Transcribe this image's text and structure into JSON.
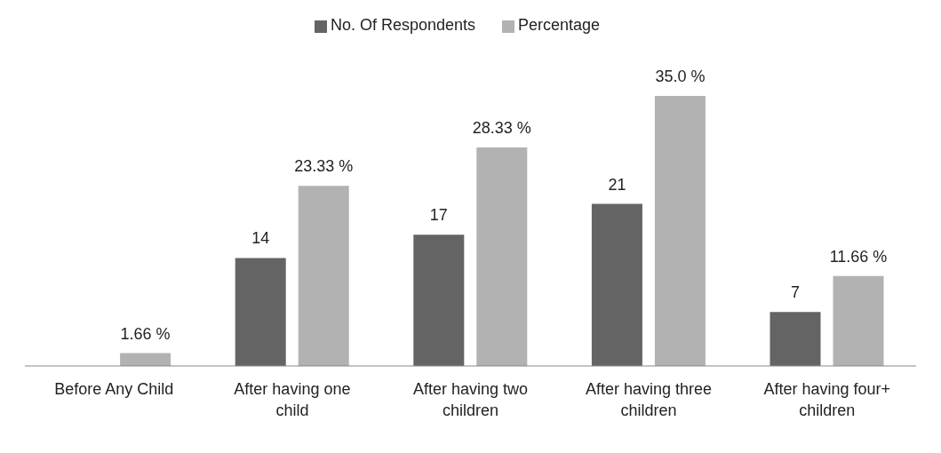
{
  "chart_data": {
    "type": "bar",
    "categories": [
      "Before Any Child",
      "After having one child",
      "After having two children",
      "After having three children",
      "After having four+ children"
    ],
    "series": [
      {
        "name": "No. Of Respondents",
        "color": "#646464",
        "values": [
          null,
          14,
          17,
          21,
          7
        ],
        "value_labels": [
          null,
          "14",
          "17",
          "21",
          "7"
        ]
      },
      {
        "name": "Percentage",
        "color": "#b2b2b2",
        "values": [
          1.66,
          23.33,
          28.33,
          35.0,
          11.66
        ],
        "value_labels": [
          "1.66 %",
          "23.33 %",
          "28.33 %",
          "35.0 %",
          "11.66 %"
        ]
      }
    ],
    "legend": "top",
    "grid": false
  }
}
